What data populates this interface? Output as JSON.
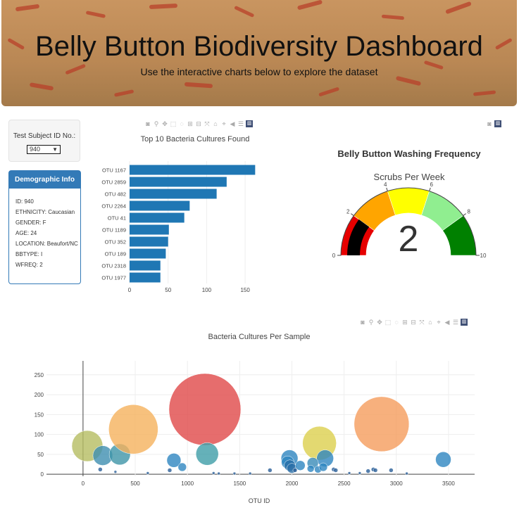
{
  "header": {
    "title": "Belly Button Biodiversity Dashboard",
    "subtitle": "Use the interactive charts below to explore the dataset"
  },
  "selector": {
    "label": "Test Subject ID No.:",
    "selected": "940"
  },
  "demographics": {
    "heading": "Demographic Info",
    "lines": [
      "ID: 940",
      "ETHNICITY: Caucasian",
      "GENDER: F",
      "AGE: 24",
      "LOCATION: Beaufort/NC",
      "BBTYPE: I",
      "WFREQ: 2"
    ]
  },
  "modebar_icons": [
    "camera-icon",
    "zoom-icon",
    "pan-icon",
    "box-select-icon",
    "lasso-icon",
    "zoom-in-icon",
    "zoom-out-icon",
    "autoscale-icon",
    "home-icon",
    "spike-lines-icon",
    "hover-closest-icon",
    "hover-compare-icon",
    "plotly-logo-icon"
  ],
  "chart_data": [
    {
      "type": "bar",
      "orientation": "horizontal",
      "title": "Top 10 Bacteria Cultures Found",
      "categories": [
        "OTU 1167",
        "OTU 2859",
        "OTU 482",
        "OTU 2264",
        "OTU 41",
        "OTU 1189",
        "OTU 352",
        "OTU 189",
        "OTU 2318",
        "OTU 1977"
      ],
      "values": [
        163,
        126,
        113,
        78,
        71,
        51,
        50,
        47,
        40,
        40
      ],
      "xlim": [
        0,
        170
      ],
      "xticks": [
        0,
        50,
        100,
        150
      ],
      "color": "#1f77b4"
    },
    {
      "type": "gauge",
      "title": "Belly Button Washing Frequency",
      "subtitle": "Scrubs Per Week",
      "value": 2,
      "range": [
        0,
        10
      ],
      "ticks": [
        0,
        2,
        4,
        6,
        8,
        10
      ],
      "bands": [
        {
          "from": 0,
          "to": 2,
          "color": "#e60000"
        },
        {
          "from": 2,
          "to": 4,
          "color": "#ffa500"
        },
        {
          "from": 4,
          "to": 6,
          "color": "#ffff00"
        },
        {
          "from": 6,
          "to": 8,
          "color": "#90ee90"
        },
        {
          "from": 8,
          "to": 10,
          "color": "#008000"
        }
      ],
      "bar_color": "#000000"
    },
    {
      "type": "scatter",
      "title": "Bacteria Cultures Per Sample",
      "xlabel": "OTU ID",
      "xlim": [
        -350,
        3750
      ],
      "ylim": [
        -5,
        285
      ],
      "xticks": [
        0,
        500,
        1000,
        1500,
        2000,
        2500,
        3000,
        3500
      ],
      "yticks": [
        0,
        50,
        100,
        150,
        200,
        250
      ],
      "points": [
        {
          "x": 41,
          "y": 71,
          "r": 22,
          "color": "#b5bd61"
        },
        {
          "x": 189,
          "y": 47,
          "r": 14,
          "color": "#3e8fb0"
        },
        {
          "x": 352,
          "y": 50,
          "r": 15,
          "color": "#3e95a8"
        },
        {
          "x": 482,
          "y": 113,
          "r": 35,
          "color": "#f5b25c"
        },
        {
          "x": 1167,
          "y": 163,
          "r": 51,
          "color": "#e04848"
        },
        {
          "x": 1189,
          "y": 51,
          "r": 16,
          "color": "#3e9da8"
        },
        {
          "x": 2264,
          "y": 78,
          "r": 24,
          "color": "#dccf4e"
        },
        {
          "x": 2859,
          "y": 126,
          "r": 39,
          "color": "#f59c5c"
        },
        {
          "x": 2318,
          "y": 40,
          "r": 12,
          "color": "#2e86c1"
        },
        {
          "x": 1977,
          "y": 40,
          "r": 12,
          "color": "#2e86c1"
        },
        {
          "x": 870,
          "y": 35,
          "r": 10,
          "color": "#2e86c1"
        },
        {
          "x": 950,
          "y": 18,
          "r": 6,
          "color": "#2e86c1"
        },
        {
          "x": 1960,
          "y": 30,
          "r": 9,
          "color": "#2e86c1"
        },
        {
          "x": 1980,
          "y": 22,
          "r": 8,
          "color": "#2a6fa8"
        },
        {
          "x": 2000,
          "y": 15,
          "r": 7,
          "color": "#2a6fa8"
        },
        {
          "x": 2080,
          "y": 22,
          "r": 7,
          "color": "#2e86c1"
        },
        {
          "x": 2200,
          "y": 28,
          "r": 8,
          "color": "#3a8bb8"
        },
        {
          "x": 2250,
          "y": 12,
          "r": 5,
          "color": "#2e86c1"
        },
        {
          "x": 2300,
          "y": 18,
          "r": 6,
          "color": "#2e86c1"
        },
        {
          "x": 2180,
          "y": 14,
          "r": 5,
          "color": "#2e86c1"
        },
        {
          "x": 3450,
          "y": 37,
          "r": 11,
          "color": "#2e86c1"
        },
        {
          "x": 165,
          "y": 12,
          "r": 3,
          "color": "#2a5f99"
        },
        {
          "x": 830,
          "y": 10,
          "r": 3,
          "color": "#2a5f99"
        },
        {
          "x": 1790,
          "y": 10,
          "r": 3,
          "color": "#2a5f99"
        },
        {
          "x": 2030,
          "y": 10,
          "r": 3,
          "color": "#2a5f99"
        },
        {
          "x": 2400,
          "y": 12,
          "r": 3,
          "color": "#2a5f99"
        },
        {
          "x": 2420,
          "y": 10,
          "r": 3,
          "color": "#2a5f99"
        },
        {
          "x": 2730,
          "y": 8,
          "r": 3,
          "color": "#2a5f99"
        },
        {
          "x": 2780,
          "y": 12,
          "r": 3,
          "color": "#2a5f99"
        },
        {
          "x": 2800,
          "y": 10,
          "r": 3,
          "color": "#2a5f99"
        },
        {
          "x": 2950,
          "y": 10,
          "r": 3,
          "color": "#2a5f99"
        },
        {
          "x": 310,
          "y": 6,
          "r": 2,
          "color": "#2a5f99"
        },
        {
          "x": 620,
          "y": 3,
          "r": 2,
          "color": "#2a5f99"
        },
        {
          "x": 1250,
          "y": 3,
          "r": 2,
          "color": "#2a5f99"
        },
        {
          "x": 1300,
          "y": 2,
          "r": 2,
          "color": "#2a5f99"
        },
        {
          "x": 1450,
          "y": 2,
          "r": 2,
          "color": "#2a5f99"
        },
        {
          "x": 1600,
          "y": 2,
          "r": 2,
          "color": "#2a5f99"
        },
        {
          "x": 2550,
          "y": 3,
          "r": 2,
          "color": "#2a5f99"
        },
        {
          "x": 2650,
          "y": 3,
          "r": 2,
          "color": "#2a5f99"
        },
        {
          "x": 3100,
          "y": 2,
          "r": 2,
          "color": "#2a5f99"
        }
      ]
    }
  ]
}
